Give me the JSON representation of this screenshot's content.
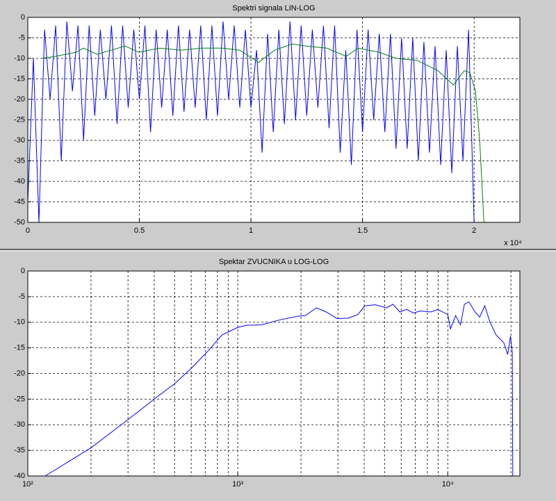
{
  "chart_data": [
    {
      "type": "line",
      "title": "Spektri signala LIN-LOG",
      "xlim": [
        0,
        22050
      ],
      "ylim": [
        -50,
        0
      ],
      "xticks": [
        0,
        {
          "value": 5000,
          "label": "0.5"
        },
        {
          "value": 10000,
          "label": "1"
        },
        {
          "value": 15000,
          "label": "1.5"
        },
        {
          "value": 20000,
          "label": "2"
        }
      ],
      "x_multiplier": "x 10⁴",
      "yticks": [
        -50,
        -45,
        -40,
        -35,
        -30,
        -25,
        -20,
        -15,
        -10,
        -5,
        0
      ],
      "grid": true,
      "series": [
        {
          "color": "#0000ff",
          "x": [
            0,
            250,
            500,
            750,
            1000,
            1250,
            1500,
            1750,
            2000,
            2250,
            2500,
            2750,
            3000,
            3250,
            3500,
            3750,
            4000,
            4250,
            4500,
            4750,
            5000,
            5250,
            5500,
            5750,
            6000,
            6250,
            6500,
            6750,
            7000,
            7250,
            7500,
            7750,
            8000,
            8250,
            8500,
            8750,
            9000,
            9250,
            9500,
            9750,
            10000,
            10250,
            10500,
            10750,
            11000,
            11250,
            11500,
            11750,
            12000,
            12250,
            12500,
            12750,
            13000,
            13250,
            13500,
            13750,
            14000,
            14250,
            14500,
            14750,
            15000,
            15250,
            15500,
            15750,
            16000,
            16250,
            16500,
            16750,
            17000,
            17250,
            17500,
            17750,
            18000,
            18250,
            18500,
            18750,
            19000,
            19250,
            19500,
            19750,
            20000
          ],
          "values": [
            -45,
            -10,
            -50,
            -3,
            -20,
            -2,
            -35,
            -1,
            -18,
            -2,
            -30,
            -2,
            -24,
            -3,
            -20,
            -2,
            -26,
            -2,
            -22,
            -3,
            -20,
            -2,
            -28,
            -3,
            -22,
            -3,
            -24,
            -2,
            -23,
            -3,
            -22,
            -2,
            -25,
            -2,
            -24,
            -1,
            -20,
            -2,
            -22,
            -3,
            -22,
            -8,
            -33,
            -4,
            -28,
            -3,
            -26,
            -1,
            -25,
            -2,
            -24,
            -3,
            -22,
            -2,
            -27,
            -2,
            -33,
            -8,
            -36,
            -3,
            -28,
            -3,
            -25,
            -4,
            -28,
            -4,
            -32,
            -5,
            -32,
            -5,
            -35,
            -6,
            -33,
            -7,
            -36,
            -8,
            -38,
            -7,
            -35,
            -3,
            -50
          ]
        },
        {
          "color": "#008000",
          "x": [
            620,
            1250,
            2180,
            2490,
            3100,
            3740,
            4360,
            4980,
            5920,
            6850,
            7790,
            8720,
            9500,
            10340,
            11060,
            11840,
            12460,
            13400,
            14270,
            14800,
            15730,
            16510,
            17450,
            18380,
            19070,
            19560,
            19810,
            20060,
            20250,
            20440
          ],
          "values": [
            -10,
            -9.5,
            -8.5,
            -7.5,
            -9,
            -8,
            -7,
            -8.5,
            -7.5,
            -8,
            -7.5,
            -7.5,
            -8,
            -11,
            -8,
            -6.5,
            -7,
            -7.5,
            -9.5,
            -7.5,
            -8.5,
            -10,
            -10.5,
            -13,
            -16.5,
            -13,
            -13.5,
            -18,
            -30,
            -50
          ]
        }
      ]
    },
    {
      "type": "line",
      "title": "Spektar ZVUCNIKA u LOG-LOG",
      "xscale": "log",
      "xlim": [
        100,
        22050
      ],
      "ylim": [
        -40,
        0
      ],
      "xticks": [
        {
          "value": 100,
          "label": "10²"
        },
        {
          "value": 1000,
          "label": "10³"
        },
        {
          "value": 10000,
          "label": "10⁴"
        }
      ],
      "xminor_grid": [
        200,
        300,
        400,
        500,
        600,
        700,
        800,
        900,
        2000,
        3000,
        4000,
        5000,
        6000,
        7000,
        8000,
        9000,
        20000
      ],
      "yticks": [
        -40,
        -35,
        -30,
        -25,
        -20,
        -15,
        -10,
        -5,
        0
      ],
      "grid": true,
      "series": [
        {
          "color": "#0000ff",
          "x": [
            121,
            200,
            300,
            400,
            500,
            600,
            726,
            840,
            1000,
            1100,
            1300,
            1600,
            1950,
            2100,
            2367,
            2640,
            2976,
            3350,
            3730,
            4030,
            4520,
            5100,
            5480,
            5910,
            6370,
            6870,
            7400,
            8300,
            8950,
            10000,
            10300,
            10900,
            11500,
            12000,
            12600,
            13500,
            14200,
            15000,
            15900,
            17000,
            18500,
            19300,
            19900,
            20300,
            20400
          ],
          "values": [
            -40,
            -34.5,
            -29,
            -25,
            -22,
            -19,
            -15.5,
            -12.5,
            -11,
            -10.6,
            -10.5,
            -9.5,
            -8.8,
            -8.7,
            -7.2,
            -8,
            -9.3,
            -9.2,
            -8.5,
            -6.8,
            -6.6,
            -7.2,
            -6.5,
            -8,
            -7.5,
            -8.2,
            -7.8,
            -8,
            -7.5,
            -8.5,
            -11.3,
            -8.7,
            -10.5,
            -6.5,
            -6,
            -8,
            -9,
            -6.8,
            -10,
            -12.5,
            -14,
            -16.3,
            -12.7,
            -16,
            -40
          ]
        }
      ]
    }
  ]
}
